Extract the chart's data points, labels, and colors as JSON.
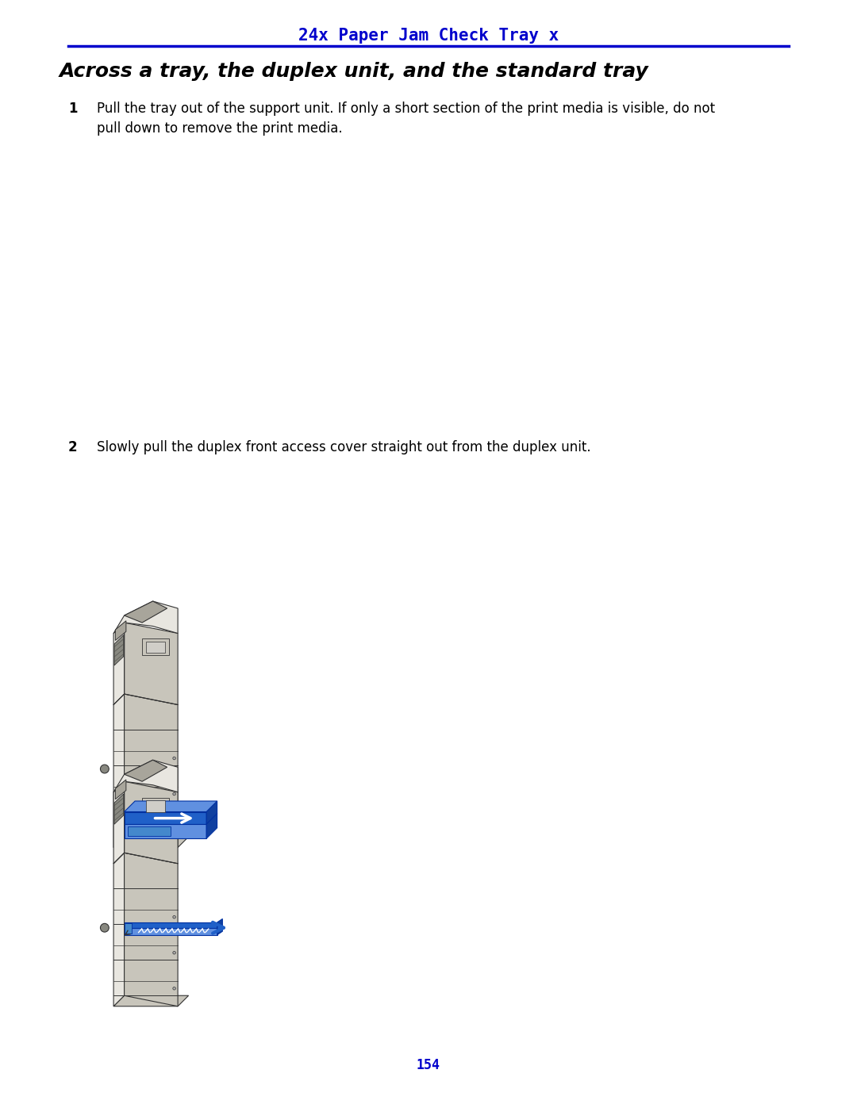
{
  "page_title": "24x Paper Jam Check Tray x",
  "page_title_color": "#0000CC",
  "page_title_fontsize": 15,
  "section_title": "Across a tray, the duplex unit, and the standard tray",
  "section_title_fontsize": 18,
  "step1_num": "1",
  "step1_text": "Pull the tray out of the support unit. If only a short section of the print media is visible, do not\npull down to remove the print media.",
  "step2_num": "2",
  "step2_text": "Slowly pull the duplex front access cover straight out from the duplex unit.",
  "page_number": "154",
  "page_number_color": "#0000CC",
  "bg_color": "#ffffff",
  "text_color": "#000000",
  "line_color": "#0000CC",
  "body_fontsize": 12,
  "printer_color": "#e8e6e0",
  "printer_dark": "#c8c5bb",
  "printer_darker": "#a8a59b",
  "printer_edge": "#333333",
  "blue_main": "#2060c8",
  "blue_light": "#6090e0",
  "blue_dark": "#1040a0"
}
